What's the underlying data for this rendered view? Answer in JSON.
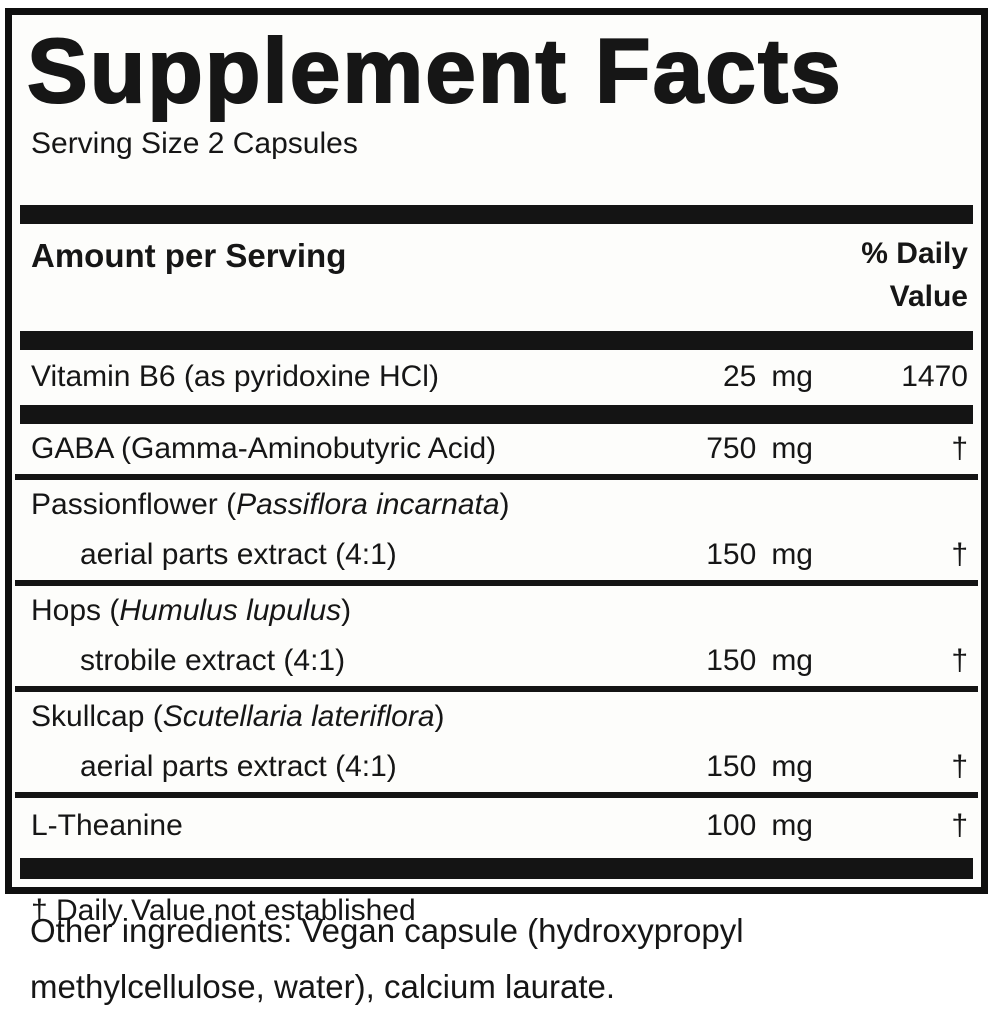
{
  "panel": {
    "title": "Supplement Facts",
    "serving_size": "Serving Size 2 Capsules",
    "header": {
      "amount_label": "Amount per Serving",
      "dv_label_line1": "% Daily",
      "dv_label_line2": "Value"
    },
    "rows": [
      {
        "name_pre": "Vitamin B6 (as pyridoxine HCl)",
        "name_italic": "",
        "name_post": "",
        "sub_name": "",
        "amount": "25",
        "unit": "mg",
        "dv": "1470",
        "divider_after": "thick"
      },
      {
        "name_pre": "GABA (Gamma-Aminobutyric Acid)",
        "name_italic": "",
        "name_post": "",
        "sub_name": "",
        "amount": "750",
        "unit": "mg",
        "dv": "†",
        "divider_after": "line"
      },
      {
        "name_pre": "Passionflower (",
        "name_italic": "Passiflora incarnata",
        "name_post": ")",
        "sub_name": "aerial parts extract (4:1)",
        "amount": "150",
        "unit": "mg",
        "dv": "†",
        "divider_after": "line"
      },
      {
        "name_pre": "Hops (",
        "name_italic": "Humulus lupulus",
        "name_post": ")",
        "sub_name": "strobile extract (4:1)",
        "amount": "150",
        "unit": "mg",
        "dv": "†",
        "divider_after": "line"
      },
      {
        "name_pre": "Skullcap (",
        "name_italic": "Scutellaria lateriflora",
        "name_post": ")",
        "sub_name": "aerial parts extract (4:1)",
        "amount": "150",
        "unit": "mg",
        "dv": "†",
        "divider_after": "line"
      },
      {
        "name_pre": "L-Theanine",
        "name_italic": "",
        "name_post": "",
        "sub_name": "",
        "amount": "100",
        "unit": "mg",
        "dv": "†",
        "divider_after": "thick-bottom"
      }
    ],
    "footnote": "† Daily Value not established",
    "other_ingredients_lines": [
      "Other ingredients: Vegan capsule (hydroxypropyl",
      "methylcellulose, water), calcium laurate."
    ]
  },
  "colors": {
    "ink": "#161616",
    "bar": "#141414",
    "panel_background": "#fdfdfb",
    "page_background": "#ffffff"
  }
}
